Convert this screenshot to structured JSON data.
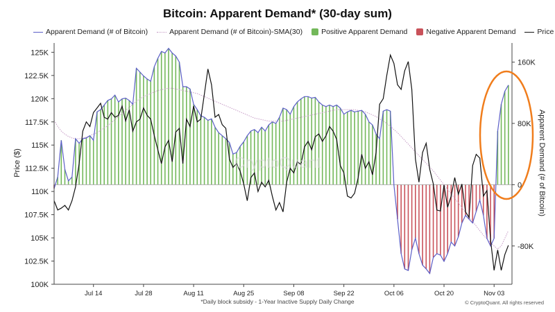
{
  "chart_data": {
    "type": "line",
    "title": "Bitcoin: Apparent Demand* (30-day sum)",
    "footnote": "*Daily block subsidy - 1-Year Inactive Supply Daily Change",
    "copyright": "© CryptoQuant. All rights reserved",
    "watermark": "CryptoQuant",
    "legend": [
      {
        "label": "Apparent Demand (# of Bitcoin)",
        "kind": "line",
        "color": "#5b5ec7"
      },
      {
        "label": "Apparent Demand (# of Bitcoin)-SMA(30)",
        "kind": "dotted",
        "color": "#c59ac5"
      },
      {
        "label": "Positive Apparent Demand",
        "kind": "square",
        "color": "#73b85a"
      },
      {
        "label": "Negative Apparent Demand",
        "kind": "square",
        "color": "#c9525a"
      },
      {
        "label": "Price",
        "kind": "line",
        "color": "#111111"
      }
    ],
    "xlabel": "",
    "ylabel_left": "Price ($)",
    "ylabel_right": "Apparent Demand (# of Bitcoin)",
    "x_ticks": [
      {
        "day": 11,
        "label": "Jul 14"
      },
      {
        "day": 25,
        "label": "Jul 28"
      },
      {
        "day": 39,
        "label": "Aug 11"
      },
      {
        "day": 53,
        "label": "Aug 25"
      },
      {
        "day": 67,
        "label": "Sep 08"
      },
      {
        "day": 81,
        "label": "Sep 22"
      },
      {
        "day": 95,
        "label": "Oct 06"
      },
      {
        "day": 109,
        "label": "Oct 20"
      },
      {
        "day": 123,
        "label": "Nov 03"
      }
    ],
    "xlim": [
      0,
      128
    ],
    "y_left": {
      "min": 100000,
      "max": 126000,
      "ticks": [
        {
          "value": 100000,
          "label": "100K"
        },
        {
          "value": 102500,
          "label": "102.5K"
        },
        {
          "value": 105000,
          "label": "105K"
        },
        {
          "value": 107500,
          "label": "107.5K"
        },
        {
          "value": 110000,
          "label": "110K"
        },
        {
          "value": 112500,
          "label": "112.5K"
        },
        {
          "value": 115000,
          "label": "115K"
        },
        {
          "value": 117500,
          "label": "117.5K"
        },
        {
          "value": 120000,
          "label": "120K"
        },
        {
          "value": 122500,
          "label": "122.5K"
        },
        {
          "value": 125000,
          "label": "125K"
        }
      ]
    },
    "y_right": {
      "min": -130000,
      "max": 185000,
      "ticks": [
        {
          "value": -80000,
          "label": "-80K"
        },
        {
          "value": 0,
          "label": "0"
        },
        {
          "value": 80000,
          "label": "80K"
        },
        {
          "value": 160000,
          "label": "160K"
        }
      ]
    },
    "series": [
      {
        "name": "Apparent Demand (# of Bitcoin)",
        "axis": "right",
        "color": "#5b5ec7",
        "values": [
          -5000,
          10000,
          58000,
          20000,
          5000,
          10000,
          60000,
          54000,
          60000,
          61000,
          64000,
          58000,
          95000,
          98000,
          104000,
          110000,
          112000,
          117000,
          108000,
          112000,
          113000,
          110000,
          105000,
          152000,
          147000,
          142000,
          138000,
          135000,
          154000,
          165000,
          174000,
          172000,
          178000,
          172000,
          168000,
          160000,
          128000,
          128000,
          125000,
          105000,
          98000,
          90000,
          88000,
          84000,
          86000,
          75000,
          68000,
          64000,
          60000,
          55000,
          40000,
          42000,
          50000,
          56000,
          64000,
          70000,
          72000,
          68000,
          75000,
          70000,
          78000,
          82000,
          80000,
          88000,
          100000,
          98000,
          92000,
          102000,
          108000,
          112000,
          115000,
          115000,
          113000,
          114000,
          108000,
          104000,
          102000,
          104000,
          102000,
          104000,
          100000,
          92000,
          95000,
          97000,
          95000,
          96000,
          97000,
          92000,
          82000,
          78000,
          66000,
          60000,
          96000,
          98000,
          96000,
          0,
          -45000,
          -90000,
          -110000,
          -112000,
          -85000,
          -70000,
          -90000,
          -105000,
          -110000,
          -116000,
          -95000,
          -90000,
          -92000,
          -100000,
          -90000,
          -75000,
          -80000,
          -68000,
          -50000,
          -40000,
          -45000,
          -50000,
          -35000,
          -20000,
          -40000,
          -70000,
          -80000,
          -70000,
          70000,
          105000,
          122000,
          130000
        ]
      },
      {
        "name": "Apparent Demand (# of Bitcoin)-SMA(30)",
        "axis": "right",
        "color": "#c59ac5",
        "dotted": true,
        "values": [
          84000,
          76000,
          70000,
          66000,
          63000,
          61000,
          60000,
          60000,
          61000,
          62000,
          64000,
          66000,
          68000,
          71000,
          74000,
          77000,
          81000,
          85000,
          89000,
          93000,
          97000,
          101000,
          105000,
          109000,
          112000,
          115000,
          117000,
          119000,
          121000,
          123000,
          124000,
          125000,
          126000,
          126000,
          125000,
          124000,
          123000,
          122000,
          121000,
          120000,
          119000,
          117000,
          115000,
          113000,
          111000,
          109000,
          107000,
          105000,
          103000,
          101000,
          99000,
          97000,
          95000,
          93000,
          91000,
          89000,
          87000,
          86000,
          85000,
          84000,
          83000,
          83000,
          83000,
          83000,
          83000,
          84000,
          85000,
          86000,
          87000,
          88000,
          89000,
          90000,
          91000,
          92000,
          93000,
          94000,
          95000,
          96000,
          97000,
          98000,
          98000,
          98000,
          98000,
          98000,
          98000,
          97000,
          96000,
          95000,
          93000,
          91000,
          89000,
          86000,
          83000,
          80000,
          76000,
          72000,
          68000,
          63000,
          58000,
          53000,
          48000,
          43000,
          38000,
          33000,
          28000,
          23000,
          18000,
          12000,
          6000,
          0,
          -6000,
          -12000,
          -18000,
          -24000,
          -30000,
          -36000,
          -42000,
          -48000,
          -54000,
          -60000,
          -66000,
          -71000,
          -76000,
          -80000,
          -84000,
          -80000,
          -70000,
          -60000
        ]
      },
      {
        "name": "Price",
        "axis": "left",
        "color": "#111111",
        "values": [
          109000,
          108000,
          108200,
          108500,
          108000,
          109000,
          110500,
          113000,
          116500,
          117500,
          117000,
          118500,
          119000,
          119500,
          118000,
          117800,
          118500,
          118000,
          118200,
          119200,
          117600,
          118800,
          116500,
          117500,
          117800,
          119000,
          118200,
          117800,
          116000,
          114500,
          113000,
          114800,
          115500,
          113200,
          116400,
          116800,
          113000,
          117800,
          117000,
          119200,
          117500,
          117800,
          120500,
          123200,
          121500,
          118000,
          118300,
          117200,
          116800,
          113500,
          112600,
          113000,
          112200,
          110800,
          109000,
          111500,
          112000,
          110000,
          111000,
          110500,
          111200,
          109500,
          108000,
          108800,
          107800,
          111000,
          112500,
          112000,
          113200,
          112900,
          114800,
          115400,
          114500,
          115900,
          116200,
          115400,
          116000,
          117000,
          116500,
          115600,
          112800,
          112000,
          109500,
          109300,
          109800,
          111500,
          114000,
          112500,
          113200,
          111800,
          114200,
          119400,
          120000,
          122500,
          124700,
          123800,
          121500,
          121000,
          123000,
          124000,
          121000,
          113500,
          111000,
          114200,
          115200,
          112400,
          110800,
          108000,
          107900,
          110700,
          108300,
          109500,
          111500,
          109700,
          110800,
          107800,
          107200,
          112800,
          114000,
          113600,
          109500,
          110100,
          104800,
          101500,
          103700,
          101500,
          103200,
          104200
        ]
      }
    ]
  }
}
